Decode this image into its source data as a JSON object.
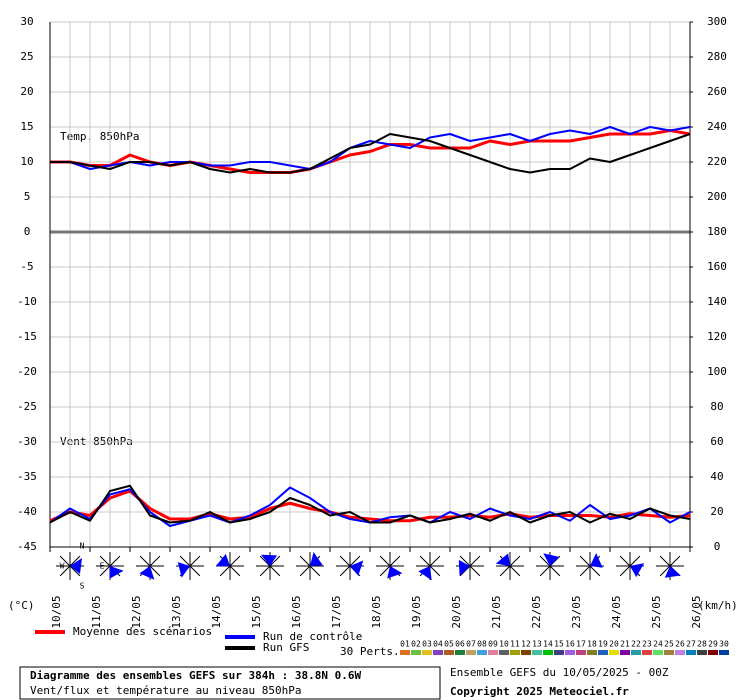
{
  "chart_data": {
    "type": "line",
    "annotations": [
      "Temp. 850hPa",
      "Vent 850hPa"
    ],
    "ylabel": "(°C)",
    "y2label": "(km/h)",
    "xlim": [
      0,
      384
    ],
    "xticks": [
      {
        "value": 0,
        "label": "10/05"
      },
      {
        "value": 24,
        "label": "11/05"
      },
      {
        "value": 48,
        "label": "12/05"
      },
      {
        "value": 72,
        "label": "13/05"
      },
      {
        "value": 96,
        "label": "14/05"
      },
      {
        "value": 120,
        "label": "15/05"
      },
      {
        "value": 144,
        "label": "16/05"
      },
      {
        "value": 168,
        "label": "17/05"
      },
      {
        "value": 192,
        "label": "18/05"
      },
      {
        "value": 216,
        "label": "19/05"
      },
      {
        "value": 240,
        "label": "20/05"
      },
      {
        "value": 264,
        "label": "21/05"
      },
      {
        "value": 288,
        "label": "22/05"
      },
      {
        "value": 312,
        "label": "23/05"
      },
      {
        "value": 336,
        "label": "24/05"
      },
      {
        "value": 360,
        "label": "25/05"
      },
      {
        "value": 384,
        "label": "26/05"
      }
    ],
    "ylim": [
      -45,
      30
    ],
    "yticks": [
      30,
      25,
      20,
      15,
      10,
      5,
      0,
      -5,
      -10,
      -15,
      -20,
      -25,
      -30,
      -35,
      -40,
      -45
    ],
    "y2lim": [
      0,
      300
    ],
    "y2ticks": [
      300,
      280,
      260,
      240,
      220,
      200,
      180,
      160,
      140,
      120,
      100,
      80,
      60,
      40,
      20,
      0
    ],
    "grid": true,
    "x": [
      0,
      12,
      24,
      36,
      48,
      60,
      72,
      84,
      96,
      108,
      120,
      132,
      144,
      156,
      168,
      180,
      192,
      204,
      216,
      228,
      240,
      252,
      264,
      276,
      288,
      300,
      312,
      324,
      336,
      348,
      360,
      372,
      384
    ],
    "series": [
      {
        "name": "Moyenne des scénarios",
        "color": "#ff0000",
        "axis": "y",
        "values": [
          10,
          10,
          9.5,
          9.5,
          11,
          10,
          9.5,
          10,
          9.5,
          9,
          8.5,
          8.5,
          8.5,
          9,
          10,
          11,
          11.5,
          12.5,
          12.5,
          12,
          12,
          12,
          13,
          12.5,
          13,
          13,
          13,
          13.5,
          14,
          14,
          14,
          14.5,
          14
        ]
      },
      {
        "name": "Run de contrôle",
        "color": "#0000ff",
        "axis": "y",
        "values": [
          10,
          10,
          9,
          9.5,
          10,
          9.5,
          10,
          10,
          9.5,
          9.5,
          10,
          10,
          9.5,
          9,
          10,
          12,
          13,
          12.5,
          12,
          13.5,
          14,
          13,
          13.5,
          14,
          13,
          14,
          14.5,
          14,
          15,
          14,
          15,
          14.5,
          15
        ]
      },
      {
        "name": "Run GFS",
        "color": "#000000",
        "axis": "y",
        "values": [
          10,
          10,
          9.5,
          9,
          10,
          10,
          9.5,
          10,
          9,
          8.5,
          9,
          8.5,
          8.5,
          9,
          10.5,
          12,
          12.5,
          14,
          13.5,
          13,
          12,
          11,
          10,
          9,
          8.5,
          9,
          9,
          10.5,
          10,
          11,
          12,
          13,
          14
        ]
      },
      {
        "name": "Moyenne des scénarios",
        "color": "#ff0000",
        "axis": "y2",
        "values": [
          15,
          20,
          18,
          28,
          32,
          22,
          16,
          16,
          19,
          16,
          17,
          22,
          25,
          22,
          20,
          17,
          16,
          15,
          15,
          17,
          17,
          18,
          17,
          19,
          17,
          18,
          18,
          18,
          17,
          19,
          18,
          17,
          18
        ]
      },
      {
        "name": "Run de contrôle",
        "color": "#0000ff",
        "axis": "y2",
        "values": [
          14,
          22,
          16,
          30,
          33,
          20,
          12,
          15,
          18,
          14,
          18,
          24,
          34,
          28,
          20,
          16,
          14,
          17,
          18,
          14,
          20,
          16,
          22,
          18,
          16,
          20,
          15,
          24,
          16,
          18,
          22,
          14,
          20
        ]
      },
      {
        "name": "Run GFS",
        "color": "#000000",
        "axis": "y2",
        "values": [
          14,
          20,
          15,
          32,
          35,
          18,
          14,
          15,
          20,
          14,
          16,
          20,
          28,
          24,
          18,
          20,
          14,
          14,
          18,
          14,
          16,
          19,
          15,
          20,
          14,
          18,
          20,
          14,
          19,
          16,
          22,
          18,
          16
        ]
      }
    ],
    "compass": [
      "N",
      "E",
      "S",
      "W"
    ],
    "perturbations": {
      "label": "30 Perts.",
      "names": [
        "01",
        "02",
        "03",
        "04",
        "05",
        "06",
        "07",
        "08",
        "09",
        "10",
        "11",
        "12",
        "13",
        "14",
        "15",
        "16",
        "17",
        "18",
        "19",
        "20",
        "21",
        "22",
        "23",
        "24",
        "25",
        "26",
        "27",
        "28",
        "29",
        "30"
      ],
      "colors": [
        "#e07020",
        "#70c040",
        "#e0c020",
        "#8040c0",
        "#b06020",
        "#208040",
        "#c0a060",
        "#40a0e0",
        "#e080a0",
        "#606060",
        "#a0a000",
        "#804000",
        "#40c0a0",
        "#00c000",
        "#404080",
        "#a060e0",
        "#c04080",
        "#808020",
        "#2060c0",
        "#e0e000",
        "#8000a0",
        "#20a0a0",
        "#e04040",
        "#60e060",
        "#a08040",
        "#c080e0",
        "#0080c0",
        "#404040",
        "#800000",
        "#0040a0"
      ]
    },
    "footer": {
      "title": "Diagramme des ensembles GEFS sur 384h : 38.8N 0.6W",
      "subtitle": "Vent/flux et température au niveau 850hPa",
      "run": "Ensemble GEFS du 10/05/2025 - 00Z",
      "copyright": "Copyright 2025 Meteociel.fr"
    }
  }
}
